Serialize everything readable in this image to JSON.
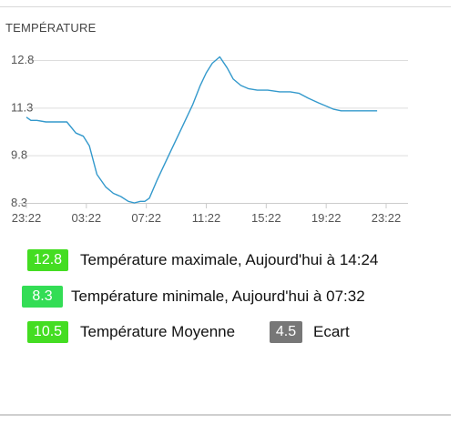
{
  "card": {
    "title": "TEMPÉRATURE"
  },
  "chart_data": {
    "type": "line",
    "title": "TEMPÉRATURE",
    "xlabel": "",
    "ylabel": "",
    "x_tick_labels": [
      "23:22",
      "03:22",
      "07:22",
      "11:22",
      "15:22",
      "19:22",
      "23:22"
    ],
    "y_tick_labels": [
      "8.3",
      "9.8",
      "11.3",
      "12.8"
    ],
    "y_ticks": [
      8.3,
      9.8,
      11.3,
      12.8
    ],
    "ylim": [
      8.3,
      12.8
    ],
    "x_unit": "hours since 23:22 (previous day)",
    "xlim": [
      0,
      24
    ],
    "grid": true,
    "line_color": "#3399cc",
    "series": [
      {
        "x": [
          0.0,
          0.3,
          0.7,
          1.3,
          2.0,
          2.7,
          3.3,
          3.8,
          4.2,
          4.7,
          5.3,
          5.8,
          6.3,
          6.8,
          7.2,
          7.6,
          7.9,
          8.2,
          8.7,
          9.2,
          9.7,
          10.3,
          10.7,
          11.1,
          11.6,
          12.0,
          12.4,
          12.9,
          13.4,
          13.8,
          14.3,
          14.8,
          15.4,
          16.1,
          16.9,
          17.6,
          18.2,
          18.8,
          19.5,
          20.0,
          20.5,
          21.0,
          21.5,
          22.0,
          22.5,
          23.0,
          23.4
        ],
        "values": [
          11.0,
          10.9,
          10.9,
          10.85,
          10.85,
          10.85,
          10.5,
          10.4,
          10.1,
          9.2,
          8.8,
          8.6,
          8.5,
          8.35,
          8.3,
          8.35,
          8.35,
          8.45,
          9.0,
          9.5,
          10.0,
          10.6,
          11.0,
          11.4,
          12.0,
          12.4,
          12.7,
          12.9,
          12.55,
          12.2,
          12.0,
          11.9,
          11.85,
          11.85,
          11.8,
          11.8,
          11.75,
          11.6,
          11.45,
          11.35,
          11.25,
          11.2,
          11.2,
          11.2,
          11.2,
          11.2,
          11.2
        ]
      }
    ]
  },
  "stats": {
    "max": {
      "value": "12.8",
      "label": "Température maximale, Aujourd'hui à 14:24",
      "color": "#44dd22"
    },
    "min": {
      "value": "8.3",
      "label": "Température minimale, Aujourd'hui à 07:32",
      "color": "#33dd55"
    },
    "avg": {
      "value": "10.5",
      "label": "Température Moyenne",
      "color": "#44dd22"
    },
    "ecart": {
      "value": "4.5",
      "label": "Ecart",
      "color": "#777777"
    }
  }
}
